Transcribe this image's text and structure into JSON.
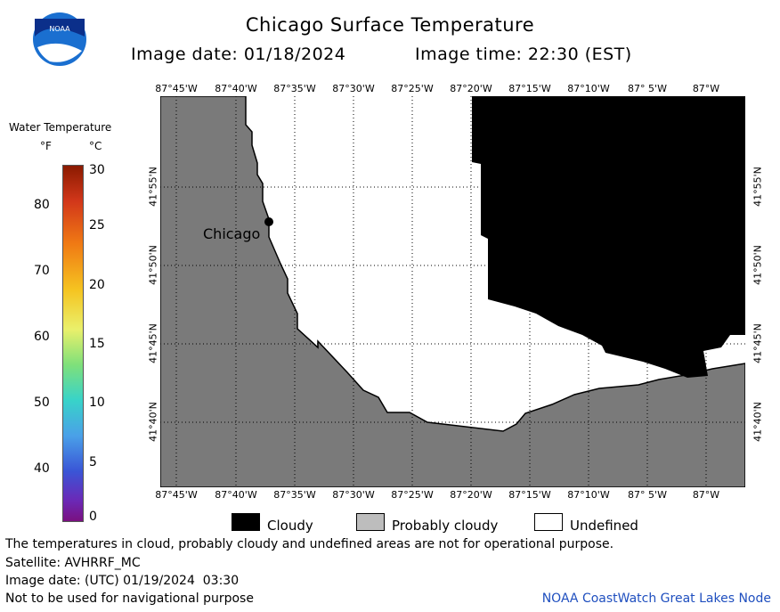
{
  "header": {
    "title": "Chicago Surface Temperature",
    "image_date_label": "Image date: 01/18/2024",
    "image_time_label": "Image time: 22:30 (EST)"
  },
  "colorbar": {
    "title": "Water Temperature",
    "unit_f": "°F",
    "unit_c": "°C",
    "f_ticks": [
      "80",
      "70",
      "60",
      "50",
      "40"
    ],
    "c_ticks": [
      "30",
      "25",
      "20",
      "15",
      "10",
      "5",
      "0"
    ]
  },
  "map": {
    "lon_labels": [
      "87°45'W",
      "87°40'W",
      "87°35'W",
      "87°30'W",
      "87°25'W",
      "87°20'W",
      "87°15'W",
      "87°10'W",
      "87° 5'W",
      "87°W"
    ],
    "lat_labels": [
      "41°55'N",
      "41°50'N",
      "41°45'N",
      "41°40'N"
    ],
    "city_label": "Chicago"
  },
  "legend": {
    "cloudy": "Cloudy",
    "probably_cloudy": "Probably cloudy",
    "undefined": "Undefined"
  },
  "footer": {
    "disclaimer": "The temperatures in cloud, probably cloudy and undefined areas are not for operational purpose.",
    "satellite": "Satellite: AVHRRF_MC",
    "utc_date": "Image date: (UTC) 01/19/2024  03:30",
    "nav_warning": "Not to be used for navigational purpose",
    "credit": "NOAA CoastWatch Great Lakes Node"
  },
  "colors": {
    "land": "#7a7a7a",
    "cloud": "#000000",
    "probably_cloudy": "#bdbdbd",
    "undefined": "#ffffff",
    "credit": "#1f4fbf"
  }
}
